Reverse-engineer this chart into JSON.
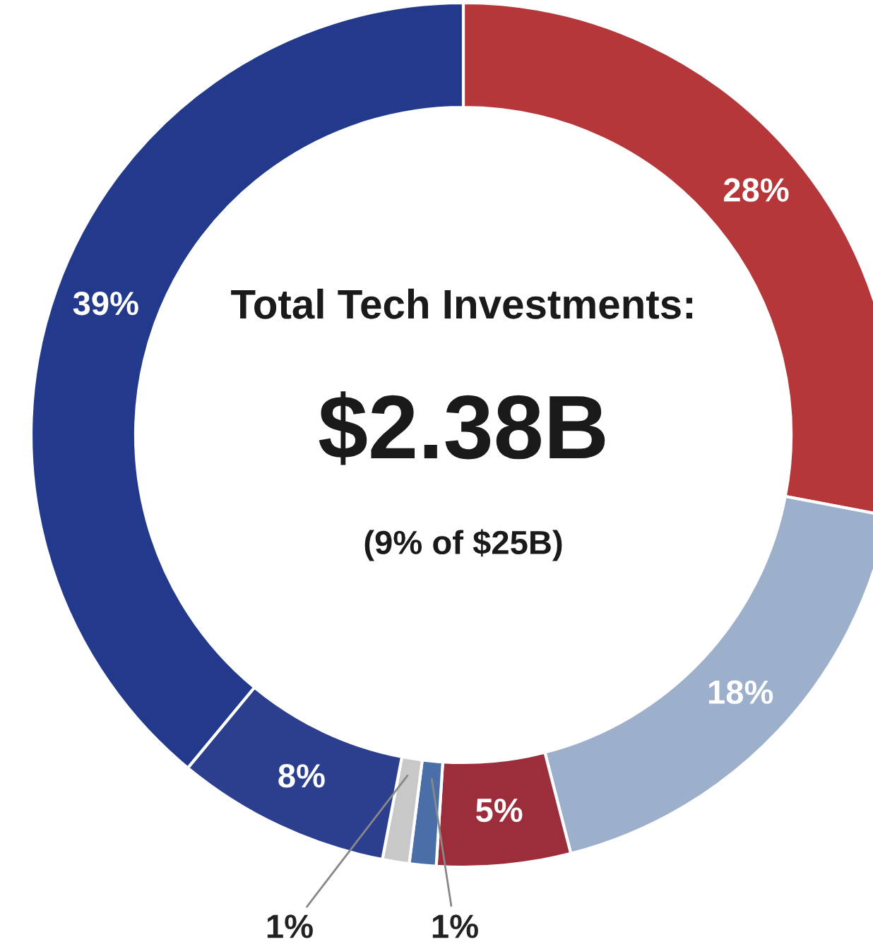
{
  "chart_data": {
    "type": "donut",
    "title": "Total Tech Investments:",
    "annotations": [
      "$2.38B",
      "(9% of $25B)"
    ],
    "categories": [
      null,
      null,
      null,
      null,
      null,
      null,
      null
    ],
    "values": [
      28,
      18,
      5,
      1,
      1,
      8,
      39
    ],
    "colors": [
      "#b5373a",
      "#9db0cb",
      "#9b2e3a",
      "#4a6ea8",
      "#c8c8c8",
      "#2c3f8f",
      "#233a8c"
    ],
    "value_labels": [
      "28%",
      "18%",
      "5%",
      "1%",
      "1%",
      "8%",
      "39%"
    ],
    "legend": false
  }
}
